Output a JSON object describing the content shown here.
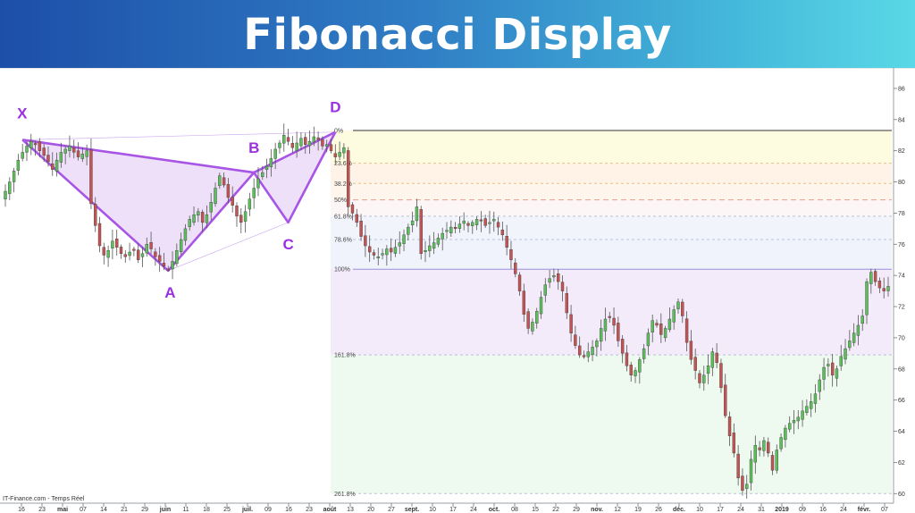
{
  "banner": {
    "title": "Fibonacci Display"
  },
  "footer": {
    "source": "IT-Finance.com - Temps Réel"
  },
  "colors": {
    "up": "#5cbf5c",
    "down": "#c45353",
    "pattern": "#a855e6",
    "pattern_fill": "#e9d5f7",
    "point_label": "#9b30e0"
  },
  "chart_data": {
    "type": "candlestick",
    "y_axis": {
      "range": [
        59.5,
        87.2
      ],
      "ticks": [
        60,
        62,
        64,
        66,
        68,
        70,
        72,
        74,
        76,
        78,
        80,
        82,
        84,
        86
      ],
      "side": "right"
    },
    "x_labels": [
      "16",
      "23",
      "mai",
      "07",
      "14",
      "21",
      "29",
      "juin",
      "11",
      "18",
      "25",
      "juil.",
      "09",
      "16",
      "23",
      "août",
      "13",
      "20",
      "27",
      "sept.",
      "10",
      "17",
      "24",
      "oct.",
      "08",
      "15",
      "22",
      "29",
      "nov.",
      "12",
      "19",
      "26",
      "déc.",
      "10",
      "17",
      "24",
      "31",
      "2019",
      "09",
      "16",
      "24",
      "févr.",
      "07"
    ],
    "harmonic_pattern": {
      "points": [
        {
          "label": "X",
          "value": 82.7
        },
        {
          "label": "A",
          "value": 74.3
        },
        {
          "label": "B",
          "value": 80.6
        },
        {
          "label": "C",
          "value": 77.4
        },
        {
          "label": "D",
          "value": 83.2
        }
      ]
    },
    "fibonacci_levels": [
      {
        "label": "0%",
        "value": 83.3
      },
      {
        "label": "23.6%",
        "value": 81.2
      },
      {
        "label": "38.2%",
        "value": 79.9
      },
      {
        "label": "50%",
        "value": 78.85
      },
      {
        "label": "61.8%",
        "value": 77.8
      },
      {
        "label": "78.6%",
        "value": 76.3
      },
      {
        "label": "100%",
        "value": 74.4
      },
      {
        "label": "161.8%",
        "value": 68.9
      },
      {
        "label": "261.8%",
        "value": 60.0
      }
    ],
    "fib_zones": [
      {
        "from": 83.3,
        "to": 81.2,
        "color": "#fdfbe0"
      },
      {
        "from": 81.2,
        "to": 79.9,
        "color": "#fef3e6"
      },
      {
        "from": 79.9,
        "to": 78.85,
        "color": "#fef5ed"
      },
      {
        "from": 78.85,
        "to": 77.8,
        "color": "#fdf6f6"
      },
      {
        "from": 77.8,
        "to": 76.3,
        "color": "#f2f4fc"
      },
      {
        "from": 76.3,
        "to": 74.4,
        "color": "#f0f3fc"
      },
      {
        "from": 74.4,
        "to": 68.9,
        "color": "#f3ebfa"
      },
      {
        "from": 68.9,
        "to": 60.0,
        "color": "#eefaef"
      }
    ],
    "close_series": [
      79.4,
      80.0,
      80.7,
      81.4,
      81.9,
      82.3,
      82.6,
      82.4,
      82.0,
      81.7,
      81.3,
      80.8,
      81.4,
      81.9,
      82.1,
      82.3,
      81.9,
      81.6,
      81.8,
      82.0,
      78.6,
      77.2,
      75.9,
      75.3,
      75.6,
      76.2,
      75.8,
      75.4,
      75.2,
      75.5,
      75.6,
      75.0,
      75.4,
      76.0,
      75.7,
      75.2,
      74.9,
      74.6,
      74.4,
      74.9,
      75.6,
      76.3,
      77.0,
      77.6,
      77.9,
      78.1,
      77.4,
      77.9,
      78.7,
      79.6,
      80.4,
      79.8,
      79.0,
      78.5,
      77.8,
      77.4,
      78.1,
      78.9,
      79.6,
      80.2,
      80.6,
      81.0,
      81.5,
      82.1,
      82.5,
      83.0,
      82.6,
      82.2,
      82.5,
      82.8,
      82.4,
      82.6,
      82.9,
      82.7,
      82.3,
      82.4,
      82.0,
      81.6,
      81.9,
      82.2,
      78.4,
      78.0,
      77.4,
      76.5,
      75.9,
      75.5,
      75.3,
      75.2,
      75.4,
      75.7,
      75.5,
      75.8,
      76.1,
      76.6,
      77.1,
      77.5,
      78.4,
      75.4,
      75.6,
      75.9,
      76.1,
      76.4,
      76.7,
      76.9,
      77.1,
      77.0,
      77.3,
      77.5,
      77.2,
      77.4,
      77.6,
      77.5,
      77.2,
      77.4,
      77.6,
      77.1,
      76.6,
      75.8,
      75.0,
      74.1,
      73.0,
      71.5,
      70.6,
      71.0,
      71.7,
      72.6,
      73.4,
      73.8,
      74.0,
      73.6,
      73.0,
      71.6,
      70.3,
      69.5,
      68.9,
      68.8,
      69.1,
      69.4,
      69.8,
      70.6,
      71.2,
      71.3,
      70.8,
      69.8,
      69.0,
      68.2,
      67.6,
      67.9,
      68.6,
      69.3,
      70.3,
      71.1,
      70.8,
      70.2,
      70.6,
      71.2,
      71.8,
      72.3,
      71.4,
      69.7,
      68.6,
      67.9,
      67.1,
      67.6,
      68.2,
      69.1,
      68.4,
      66.8,
      65.0,
      63.7,
      62.6,
      61.0,
      60.2,
      60.6,
      62.2,
      63.1,
      62.8,
      63.4,
      62.6,
      61.5,
      62.8,
      63.6,
      64.2,
      64.5,
      64.7,
      64.9,
      65.3,
      65.6,
      65.9,
      66.4,
      67.3,
      68.1,
      68.3,
      67.6,
      68.0,
      68.8,
      69.3,
      69.8,
      70.3,
      70.8,
      71.4,
      73.6,
      74.2,
      73.6,
      73.2,
      73.0,
      73.3
    ]
  }
}
